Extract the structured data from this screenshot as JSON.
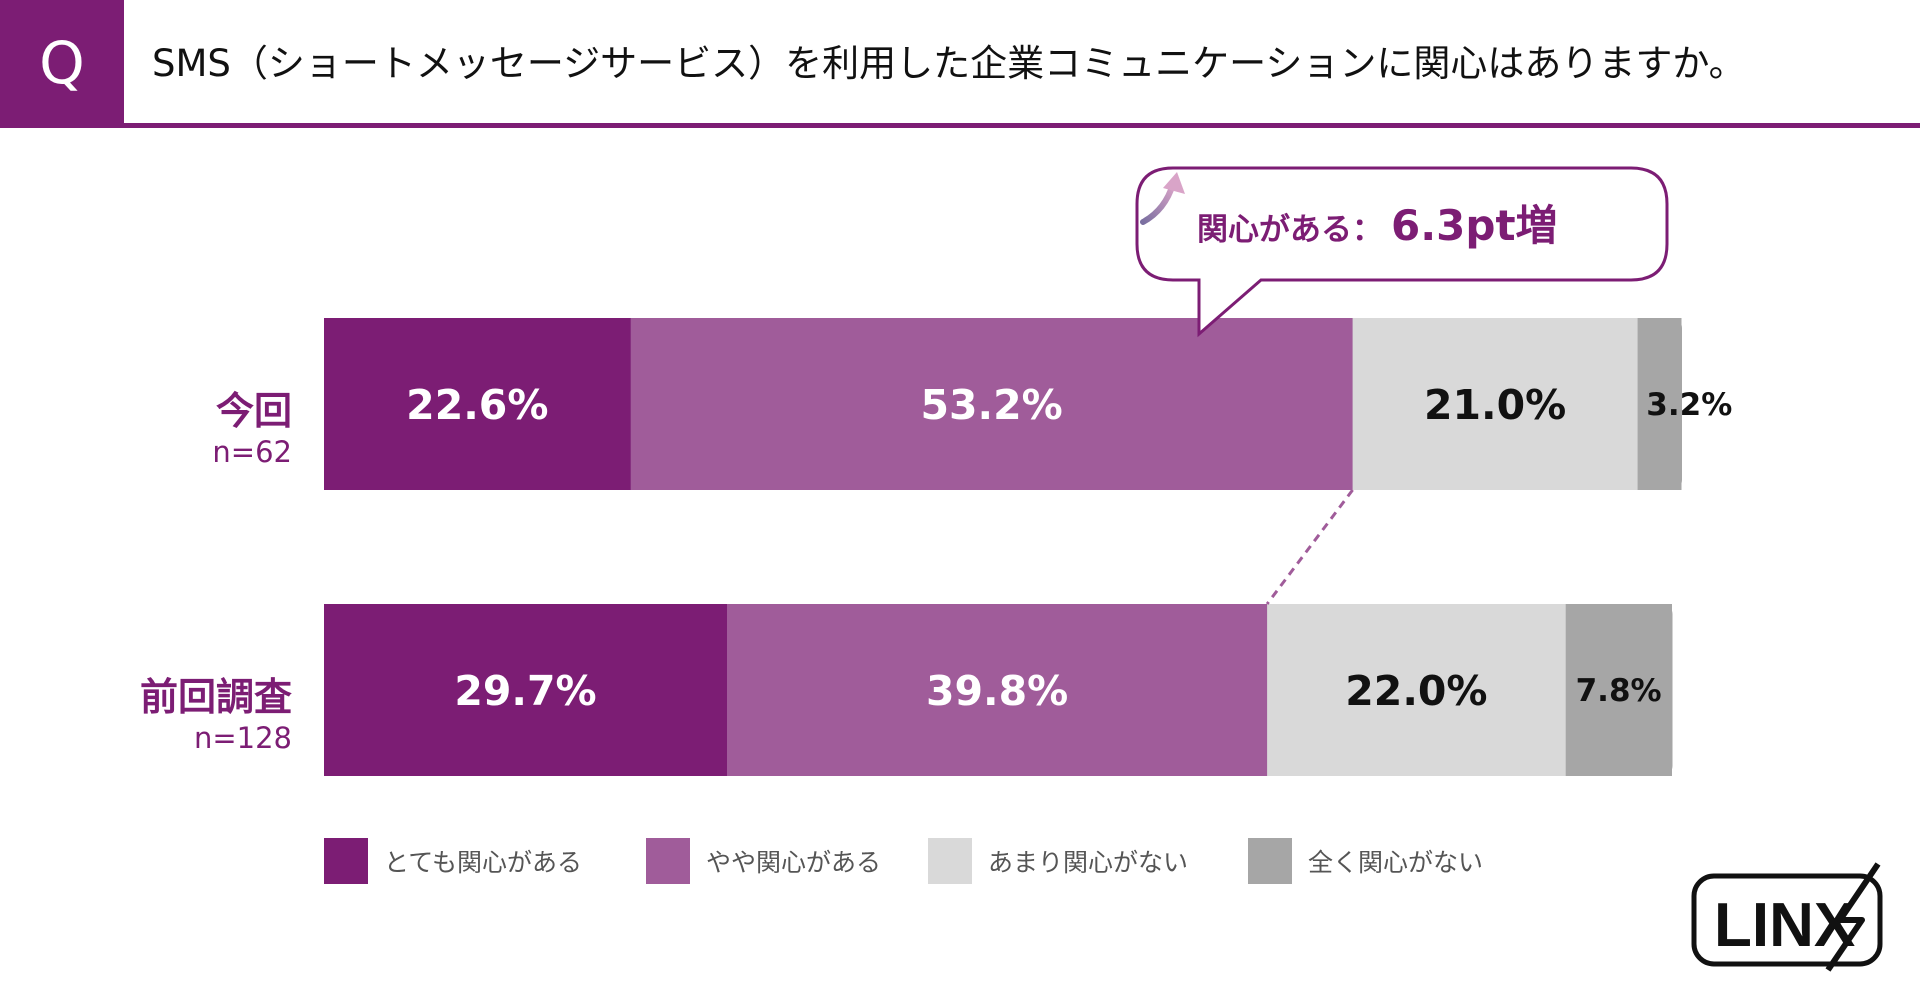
{
  "header": {
    "q_label": "Q",
    "question": "SMS（ショートメッセージサービス）を利用した企業コミュニケーションに関心はありますか。"
  },
  "callout": {
    "label": "関心がある：",
    "value": "6.3pt増"
  },
  "colors": {
    "accent": "#7c1d74",
    "very_interested": "#7c1d74",
    "somewhat_interested": "#a05c9a",
    "not_very_interested": "#d9d9d9",
    "not_interested": "#a6a6a6",
    "connector": "#a05c9a"
  },
  "chart_data": {
    "type": "bar",
    "orientation": "horizontal",
    "stacked": true,
    "categories": [
      "今回",
      "前回調査"
    ],
    "sample_sizes": [
      "n=62",
      "n=128"
    ],
    "series": [
      {
        "name": "とても関心がある",
        "values": [
          22.6,
          29.7
        ],
        "labels": [
          "22.6%",
          "29.7%"
        ],
        "color": "#7c1d74",
        "label_color": "#ffffff"
      },
      {
        "name": "やや関心がある",
        "values": [
          53.2,
          39.8
        ],
        "labels": [
          "53.2%",
          "39.8%"
        ],
        "color": "#a05c9a",
        "label_color": "#ffffff"
      },
      {
        "name": "あまり関心がない",
        "values": [
          21.0,
          22.0
        ],
        "labels": [
          "21.0%",
          "22.0%"
        ],
        "color": "#d9d9d9",
        "label_color": "#111111"
      },
      {
        "name": "全く関心がない",
        "values": [
          3.2,
          7.8
        ],
        "labels": [
          "3.2%",
          "7.8%"
        ],
        "color": "#a6a6a6",
        "label_color": "#111111"
      }
    ],
    "xlim": [
      0,
      100
    ],
    "grid": false,
    "legend": "bottom"
  },
  "logo": {
    "text": "LINX"
  }
}
